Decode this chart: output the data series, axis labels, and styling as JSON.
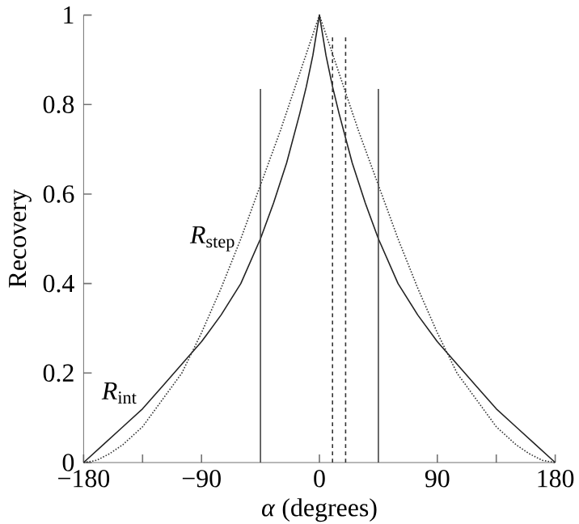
{
  "chart_data": {
    "type": "line",
    "xlabel": "*α* (degrees)",
    "ylabel": "Recovery",
    "xlim": [
      -180,
      180
    ],
    "ylim": [
      0,
      1
    ],
    "xticks": [
      {
        "value": -180,
        "label": "−180"
      },
      {
        "value": -135,
        "label": null
      },
      {
        "value": -90,
        "label": "−90"
      },
      0,
      90,
      {
        "value": 135,
        "label": null
      },
      180
    ],
    "yticks": [
      0,
      0.2,
      0.4,
      0.6,
      0.8,
      1
    ],
    "series": [
      {
        "name": "*R*$_{int}$",
        "color": "#222222",
        "line_style": "solid",
        "x": [
          -180,
          -165,
          -150,
          -135,
          -120,
          -105,
          -90,
          -75,
          -60,
          -45,
          -35,
          -25,
          -15,
          -10,
          -5,
          0,
          5,
          10,
          15,
          25,
          35,
          45,
          60,
          75,
          90,
          105,
          120,
          135,
          150,
          165,
          180
        ],
        "values": [
          0,
          0.04,
          0.08,
          0.12,
          0.17,
          0.22,
          0.27,
          0.33,
          0.4,
          0.5,
          0.58,
          0.67,
          0.78,
          0.84,
          0.91,
          1,
          0.91,
          0.84,
          0.78,
          0.67,
          0.58,
          0.5,
          0.4,
          0.33,
          0.27,
          0.22,
          0.17,
          0.12,
          0.08,
          0.04,
          0
        ]
      },
      {
        "name": "*R*$_{step}$",
        "color": "#333333",
        "line_style": "dotted",
        "x": [
          -180,
          -170,
          -160,
          -150,
          -135,
          -120,
          -105,
          -90,
          -75,
          -60,
          -45,
          -30,
          -15,
          0,
          15,
          30,
          45,
          60,
          75,
          90,
          105,
          120,
          135,
          150,
          160,
          170,
          180
        ],
        "values": [
          0,
          0.005,
          0.02,
          0.04,
          0.08,
          0.14,
          0.2,
          0.29,
          0.39,
          0.5,
          0.62,
          0.74,
          0.87,
          1,
          0.87,
          0.74,
          0.62,
          0.5,
          0.39,
          0.29,
          0.2,
          0.14,
          0.08,
          0.04,
          0.02,
          0.005,
          0
        ]
      },
      {
        "color": "#444444",
        "line_style": "solid",
        "x": [
          -45,
          -45
        ],
        "values": [
          0,
          0.835
        ]
      },
      {
        "color": "#444444",
        "line_style": "solid",
        "x": [
          45,
          45
        ],
        "values": [
          0,
          0.835
        ]
      },
      {
        "color": "#333333",
        "line_style": "dashed",
        "x": [
          10,
          10
        ],
        "values": [
          0,
          0.95
        ]
      },
      {
        "color": "#333333",
        "line_style": "dashed",
        "x": [
          20,
          20
        ],
        "values": [
          0,
          0.95
        ]
      }
    ]
  }
}
